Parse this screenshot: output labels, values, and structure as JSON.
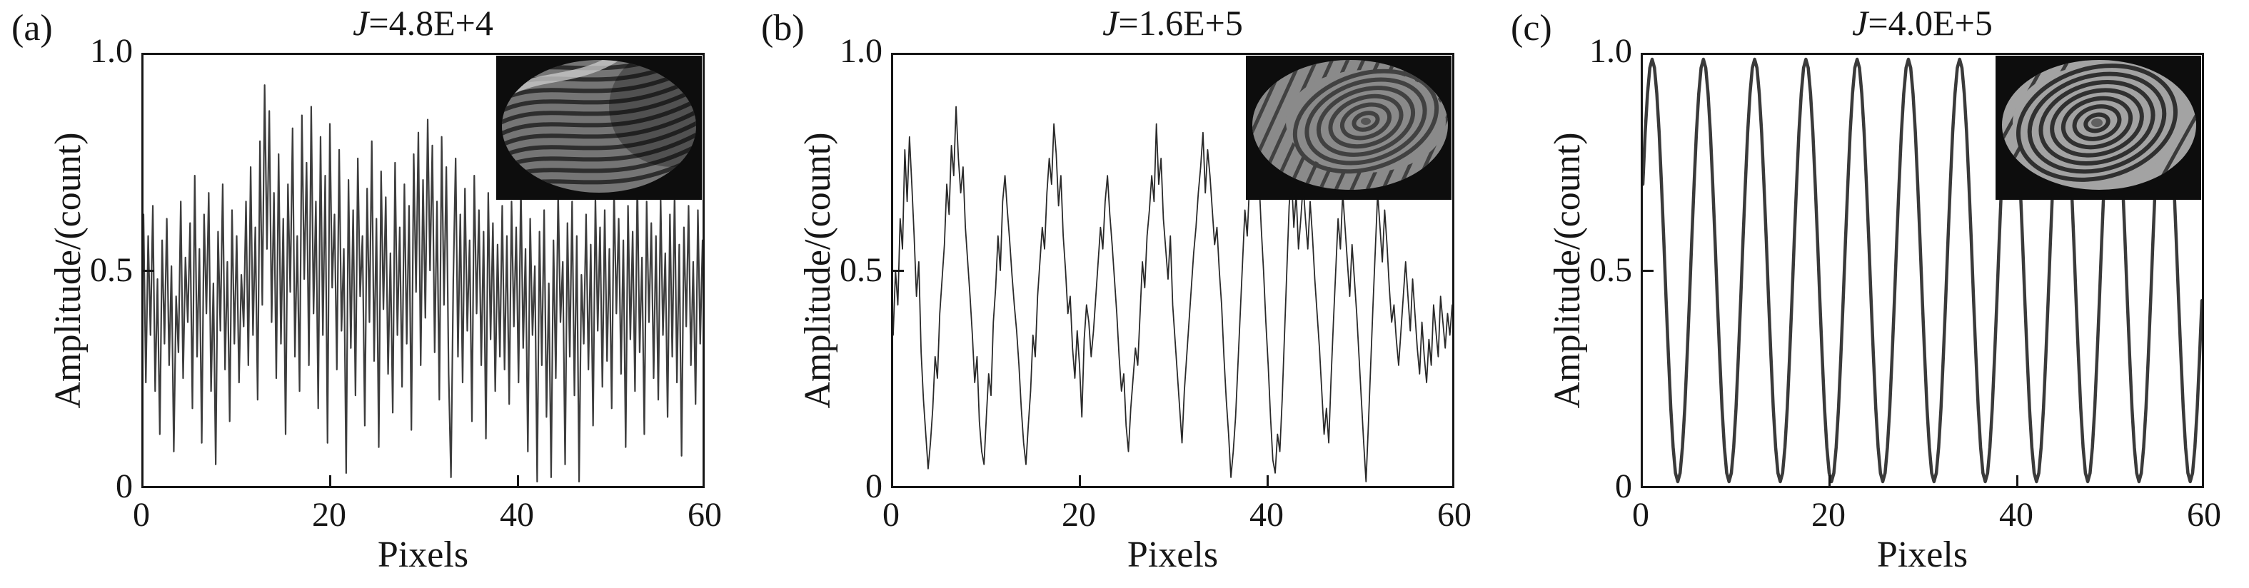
{
  "figure": {
    "panels": [
      {
        "label": "(a)",
        "title_var": "J",
        "title_rest": "=4.8E+4",
        "ylabel": "Amplitude/(count)",
        "xlabel": "Pixels",
        "yticks": [
          "1.0",
          "0.5",
          "0"
        ],
        "xticks": [
          "0",
          "20",
          "40",
          "60"
        ]
      },
      {
        "label": "(b)",
        "title_var": "J",
        "title_rest": "=1.6E+5",
        "ylabel": "Amplitude/(count)",
        "xlabel": "Pixels",
        "yticks": [
          "1.0",
          "0.5",
          "0"
        ],
        "xticks": [
          "0",
          "20",
          "40",
          "60"
        ]
      },
      {
        "label": "(c)",
        "title_var": "J",
        "title_rest": "=4.0E+5",
        "ylabel": "Amplitude/(count)",
        "xlabel": "Pixels",
        "yticks": [
          "1.0",
          "0.5",
          "0"
        ],
        "xticks": [
          "0",
          "20",
          "40",
          "60"
        ]
      }
    ]
  },
  "chart_data": [
    {
      "type": "line",
      "title": "J=4.8E+4",
      "xlabel": "Pixels",
      "ylabel": "Amplitude/(count)",
      "xlim": [
        0,
        60
      ],
      "ylim": [
        0,
        1
      ],
      "xticks": [
        0,
        20,
        40,
        60
      ],
      "yticks": [
        0,
        0.5,
        1.0
      ],
      "grid": false,
      "legend": false,
      "inset": "interferogram disc with dense distorted S-shaped fringes",
      "x0": 0,
      "dx": 0.25,
      "values": [
        0.63,
        0.24,
        0.58,
        0.35,
        0.65,
        0.22,
        0.48,
        0.12,
        0.57,
        0.33,
        0.62,
        0.28,
        0.51,
        0.08,
        0.44,
        0.31,
        0.66,
        0.25,
        0.53,
        0.38,
        0.61,
        0.18,
        0.72,
        0.3,
        0.55,
        0.1,
        0.63,
        0.4,
        0.68,
        0.22,
        0.47,
        0.05,
        0.59,
        0.36,
        0.7,
        0.27,
        0.52,
        0.15,
        0.64,
        0.33,
        0.58,
        0.24,
        0.49,
        0.37,
        0.66,
        0.28,
        0.74,
        0.35,
        0.6,
        0.2,
        0.8,
        0.42,
        0.93,
        0.55,
        0.87,
        0.38,
        0.68,
        0.25,
        0.77,
        0.33,
        0.62,
        0.12,
        0.7,
        0.45,
        0.83,
        0.3,
        0.58,
        0.22,
        0.86,
        0.48,
        0.75,
        0.28,
        0.88,
        0.4,
        0.66,
        0.18,
        0.81,
        0.35,
        0.72,
        0.1,
        0.84,
        0.46,
        0.63,
        0.27,
        0.78,
        0.36,
        0.55,
        0.03,
        0.71,
        0.32,
        0.64,
        0.21,
        0.76,
        0.44,
        0.58,
        0.14,
        0.69,
        0.38,
        0.8,
        0.29,
        0.62,
        0.09,
        0.73,
        0.41,
        0.67,
        0.26,
        0.54,
        0.17,
        0.75,
        0.35,
        0.6,
        0.23,
        0.7,
        0.33,
        0.65,
        0.13,
        0.77,
        0.45,
        0.82,
        0.28,
        0.71,
        0.39,
        0.85,
        0.5,
        0.79,
        0.31,
        0.66,
        0.2,
        0.81,
        0.42,
        0.74,
        0.26,
        0.02,
        0.48,
        0.76,
        0.3,
        0.63,
        0.24,
        0.69,
        0.36,
        0.57,
        0.15,
        0.72,
        0.4,
        0.64,
        0.28,
        0.59,
        0.11,
        0.68,
        0.34,
        0.61,
        0.22,
        0.56,
        0.3,
        0.65,
        0.27,
        0.58,
        0.19,
        0.66,
        0.37,
        0.6,
        0.24,
        0.7,
        0.32,
        0.55,
        0.08,
        0.62,
        0.35,
        0.51,
        0.01,
        0.59,
        0.28,
        0.64,
        0.16,
        0.47,
        0.02,
        0.57,
        0.25,
        0.68,
        0.38,
        0.52,
        0.05,
        0.61,
        0.3,
        0.66,
        0.21,
        0.58,
        0.01,
        0.49,
        0.33,
        0.63,
        0.27,
        0.56,
        0.14,
        0.67,
        0.36,
        0.6,
        0.23,
        0.64,
        0.29,
        0.55,
        0.18,
        0.69,
        0.4,
        0.62,
        0.26,
        0.57,
        0.09,
        0.65,
        0.34,
        0.59,
        0.22,
        0.71,
        0.31,
        0.53,
        0.12,
        0.66,
        0.38,
        0.61,
        0.25,
        0.58,
        0.2,
        0.67,
        0.35,
        0.54,
        0.16,
        0.63,
        0.3,
        0.68,
        0.24,
        0.56,
        0.07,
        0.6,
        0.37,
        0.65,
        0.28,
        0.52,
        0.19,
        0.64,
        0.33,
        0.57
      ]
    },
    {
      "type": "line",
      "title": "J=1.6E+5",
      "xlabel": "Pixels",
      "ylabel": "Amplitude/(count)",
      "xlim": [
        0,
        60
      ],
      "ylim": [
        0,
        1
      ],
      "xticks": [
        0,
        20,
        40,
        60
      ],
      "yticks": [
        0,
        0.5,
        1.0
      ],
      "grid": false,
      "legend": false,
      "inset": "interferogram disc with concentric elliptical fringes and diagonal stripes",
      "x0": 0,
      "dx": 0.25,
      "values": [
        0.35,
        0.5,
        0.42,
        0.62,
        0.55,
        0.78,
        0.66,
        0.81,
        0.7,
        0.58,
        0.44,
        0.52,
        0.31,
        0.2,
        0.12,
        0.04,
        0.1,
        0.18,
        0.3,
        0.25,
        0.4,
        0.48,
        0.56,
        0.7,
        0.63,
        0.79,
        0.72,
        0.88,
        0.76,
        0.68,
        0.74,
        0.6,
        0.52,
        0.44,
        0.35,
        0.24,
        0.3,
        0.15,
        0.08,
        0.05,
        0.16,
        0.26,
        0.21,
        0.38,
        0.46,
        0.58,
        0.5,
        0.66,
        0.72,
        0.64,
        0.57,
        0.49,
        0.42,
        0.36,
        0.28,
        0.18,
        0.1,
        0.05,
        0.14,
        0.22,
        0.35,
        0.3,
        0.44,
        0.52,
        0.6,
        0.55,
        0.68,
        0.76,
        0.7,
        0.84,
        0.77,
        0.65,
        0.72,
        0.58,
        0.5,
        0.4,
        0.44,
        0.32,
        0.25,
        0.36,
        0.28,
        0.16,
        0.34,
        0.42,
        0.38,
        0.3,
        0.36,
        0.44,
        0.52,
        0.6,
        0.55,
        0.66,
        0.72,
        0.63,
        0.56,
        0.48,
        0.4,
        0.3,
        0.22,
        0.26,
        0.14,
        0.08,
        0.18,
        0.25,
        0.32,
        0.28,
        0.4,
        0.52,
        0.46,
        0.58,
        0.64,
        0.72,
        0.66,
        0.84,
        0.7,
        0.76,
        0.62,
        0.55,
        0.48,
        0.58,
        0.42,
        0.34,
        0.26,
        0.18,
        0.1,
        0.22,
        0.3,
        0.38,
        0.46,
        0.54,
        0.6,
        0.68,
        0.74,
        0.82,
        0.68,
        0.78,
        0.72,
        0.64,
        0.56,
        0.6,
        0.5,
        0.42,
        0.3,
        0.2,
        0.12,
        0.02,
        0.08,
        0.16,
        0.28,
        0.4,
        0.52,
        0.64,
        0.58,
        0.7,
        0.78,
        0.88,
        0.8,
        0.72,
        0.6,
        0.5,
        0.38,
        0.28,
        0.16,
        0.06,
        0.03,
        0.12,
        0.08,
        0.2,
        0.35,
        0.5,
        0.65,
        0.72,
        0.6,
        0.68,
        0.55,
        0.62,
        0.7,
        0.62,
        0.55,
        0.66,
        0.58,
        0.48,
        0.4,
        0.32,
        0.22,
        0.12,
        0.18,
        0.1,
        0.25,
        0.38,
        0.5,
        0.62,
        0.55,
        0.68,
        0.6,
        0.52,
        0.44,
        0.56,
        0.48,
        0.4,
        0.3,
        0.2,
        0.1,
        0.01,
        0.14,
        0.28,
        0.42,
        0.55,
        0.68,
        0.6,
        0.52,
        0.64,
        0.56,
        0.46,
        0.38,
        0.42,
        0.34,
        0.28,
        0.36,
        0.44,
        0.52,
        0.44,
        0.36,
        0.48,
        0.4,
        0.32,
        0.26,
        0.38,
        0.3,
        0.24,
        0.34,
        0.28,
        0.42,
        0.36,
        0.3,
        0.44,
        0.38,
        0.32,
        0.4,
        0.35,
        0.42
      ]
    },
    {
      "type": "line",
      "title": "J=4.0E+5",
      "xlabel": "Pixels",
      "ylabel": "Amplitude/(count)",
      "xlim": [
        0,
        60
      ],
      "ylim": [
        0,
        1
      ],
      "xticks": [
        0,
        20,
        40,
        60
      ],
      "yticks": [
        0,
        0.5,
        1.0
      ],
      "grid": false,
      "legend": false,
      "inset": "interferogram disc with clean concentric elliptical fringes",
      "x0": 0,
      "dx": 0.25,
      "values": [
        0.7,
        0.82,
        0.91,
        0.97,
        0.99,
        0.97,
        0.91,
        0.82,
        0.7,
        0.57,
        0.43,
        0.3,
        0.18,
        0.09,
        0.03,
        0.01,
        0.03,
        0.09,
        0.18,
        0.3,
        0.43,
        0.57,
        0.7,
        0.82,
        0.91,
        0.97,
        0.99,
        0.97,
        0.91,
        0.82,
        0.7,
        0.57,
        0.43,
        0.3,
        0.18,
        0.09,
        0.03,
        0.01,
        0.03,
        0.09,
        0.18,
        0.3,
        0.43,
        0.57,
        0.7,
        0.82,
        0.91,
        0.97,
        0.99,
        0.97,
        0.91,
        0.82,
        0.7,
        0.57,
        0.43,
        0.3,
        0.18,
        0.09,
        0.03,
        0.01,
        0.03,
        0.09,
        0.18,
        0.3,
        0.43,
        0.57,
        0.7,
        0.82,
        0.91,
        0.97,
        0.99,
        0.97,
        0.91,
        0.82,
        0.7,
        0.57,
        0.43,
        0.3,
        0.18,
        0.09,
        0.03,
        0.01,
        0.03,
        0.09,
        0.18,
        0.3,
        0.43,
        0.57,
        0.7,
        0.82,
        0.91,
        0.97,
        0.99,
        0.97,
        0.91,
        0.82,
        0.7,
        0.57,
        0.43,
        0.3,
        0.18,
        0.09,
        0.03,
        0.01,
        0.03,
        0.09,
        0.18,
        0.3,
        0.43,
        0.57,
        0.7,
        0.82,
        0.91,
        0.97,
        0.99,
        0.97,
        0.91,
        0.82,
        0.7,
        0.57,
        0.43,
        0.3,
        0.18,
        0.09,
        0.03,
        0.01,
        0.03,
        0.09,
        0.18,
        0.3,
        0.43,
        0.57,
        0.7,
        0.82,
        0.91,
        0.97,
        0.99,
        0.97,
        0.91,
        0.82,
        0.7,
        0.57,
        0.43,
        0.3,
        0.18,
        0.09,
        0.03,
        0.01,
        0.03,
        0.09,
        0.18,
        0.3,
        0.43,
        0.57,
        0.7,
        0.82,
        0.91,
        0.97,
        0.99,
        0.97,
        0.91,
        0.82,
        0.7,
        0.57,
        0.43,
        0.3,
        0.18,
        0.09,
        0.03,
        0.01,
        0.03,
        0.09,
        0.18,
        0.3,
        0.43,
        0.57,
        0.7,
        0.82,
        0.91,
        0.97,
        0.99,
        0.97,
        0.91,
        0.82,
        0.7,
        0.57,
        0.43,
        0.3,
        0.18,
        0.09,
        0.03,
        0.01,
        0.03,
        0.09,
        0.18,
        0.3,
        0.43,
        0.57,
        0.7,
        0.82,
        0.91,
        0.97,
        0.99,
        0.97,
        0.91,
        0.82,
        0.7,
        0.57,
        0.43,
        0.3,
        0.18,
        0.09,
        0.03,
        0.01,
        0.03,
        0.09,
        0.18,
        0.3,
        0.43,
        0.57,
        0.7,
        0.82,
        0.91,
        0.97,
        0.99,
        0.97,
        0.91,
        0.82,
        0.7,
        0.57,
        0.43,
        0.3,
        0.18,
        0.09,
        0.03,
        0.01,
        0.03,
        0.09,
        0.18,
        0.3,
        0.43
      ]
    }
  ]
}
